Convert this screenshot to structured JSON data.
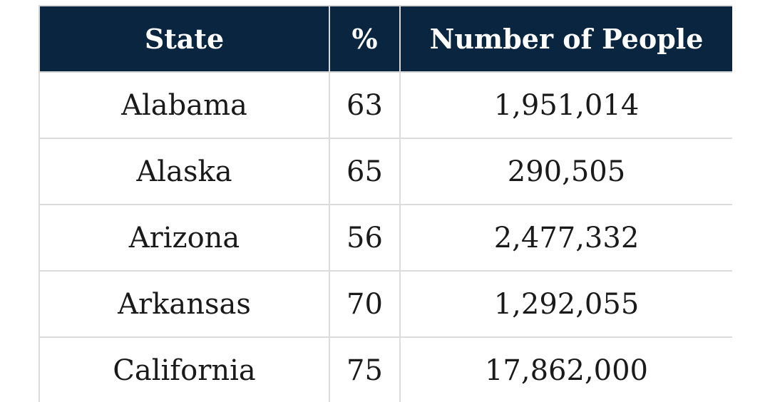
{
  "table": {
    "headers": [
      "State",
      "%",
      "Number of People"
    ],
    "rows": [
      {
        "state": "Alabama",
        "pct": "63",
        "people": "1,951,014"
      },
      {
        "state": "Alaska",
        "pct": "65",
        "people": "290,505"
      },
      {
        "state": "Arizona",
        "pct": "56",
        "people": "2,477,332"
      },
      {
        "state": "Arkansas",
        "pct": "70",
        "people": "1,292,055"
      },
      {
        "state": "California",
        "pct": "75",
        "people": "17,862,000"
      }
    ]
  },
  "colors": {
    "header_bg": "#0a2540",
    "header_text": "#ffffff",
    "grid": "#dcdcdc",
    "cell_text": "#1a1a1a"
  }
}
